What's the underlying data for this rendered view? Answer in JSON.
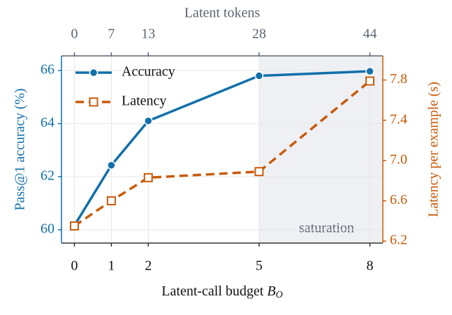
{
  "chart_data": {
    "type": "line",
    "xlabel": {
      "text": "Latent-call budget ",
      "var": "B",
      "sub": "O"
    },
    "ylabel": "Pass@1 accuracy (%)",
    "y2label": "Latency per example (s)",
    "x2label": "Latent tokens",
    "x": [
      0,
      1,
      2,
      5,
      8
    ],
    "xlim": [
      -0.35,
      8.35
    ],
    "xticks": [
      0,
      1,
      2,
      5,
      8
    ],
    "x2ticks": [
      {
        "value": 0,
        "label": "0"
      },
      {
        "value": 1,
        "label": "7"
      },
      {
        "value": 2,
        "label": "13"
      },
      {
        "value": 5,
        "label": "28"
      },
      {
        "value": 8,
        "label": "44"
      }
    ],
    "ylim": [
      59.5,
      66.55
    ],
    "yticks": [
      60,
      62,
      64,
      66
    ],
    "y2lim": [
      6.18,
      8.04
    ],
    "y2ticks": [
      6.2,
      6.6,
      {
        "value": 7,
        "label": "7.0"
      },
      7.4,
      7.8
    ],
    "grid": true,
    "legend": "upper left",
    "annotations": [
      {
        "text": "saturation",
        "x_start": 5
      }
    ],
    "series": [
      {
        "name": "Accuracy",
        "color": "#1170aa",
        "marker": "circle",
        "dash": false,
        "values": [
          60.16,
          62.43,
          64.1,
          65.8,
          65.97
        ]
      },
      {
        "name": "Latency",
        "color": "#c85a0a",
        "marker": "square",
        "dash": true,
        "axis": "y2",
        "values": [
          6.35,
          6.6,
          6.83,
          6.89,
          7.79
        ]
      }
    ]
  }
}
